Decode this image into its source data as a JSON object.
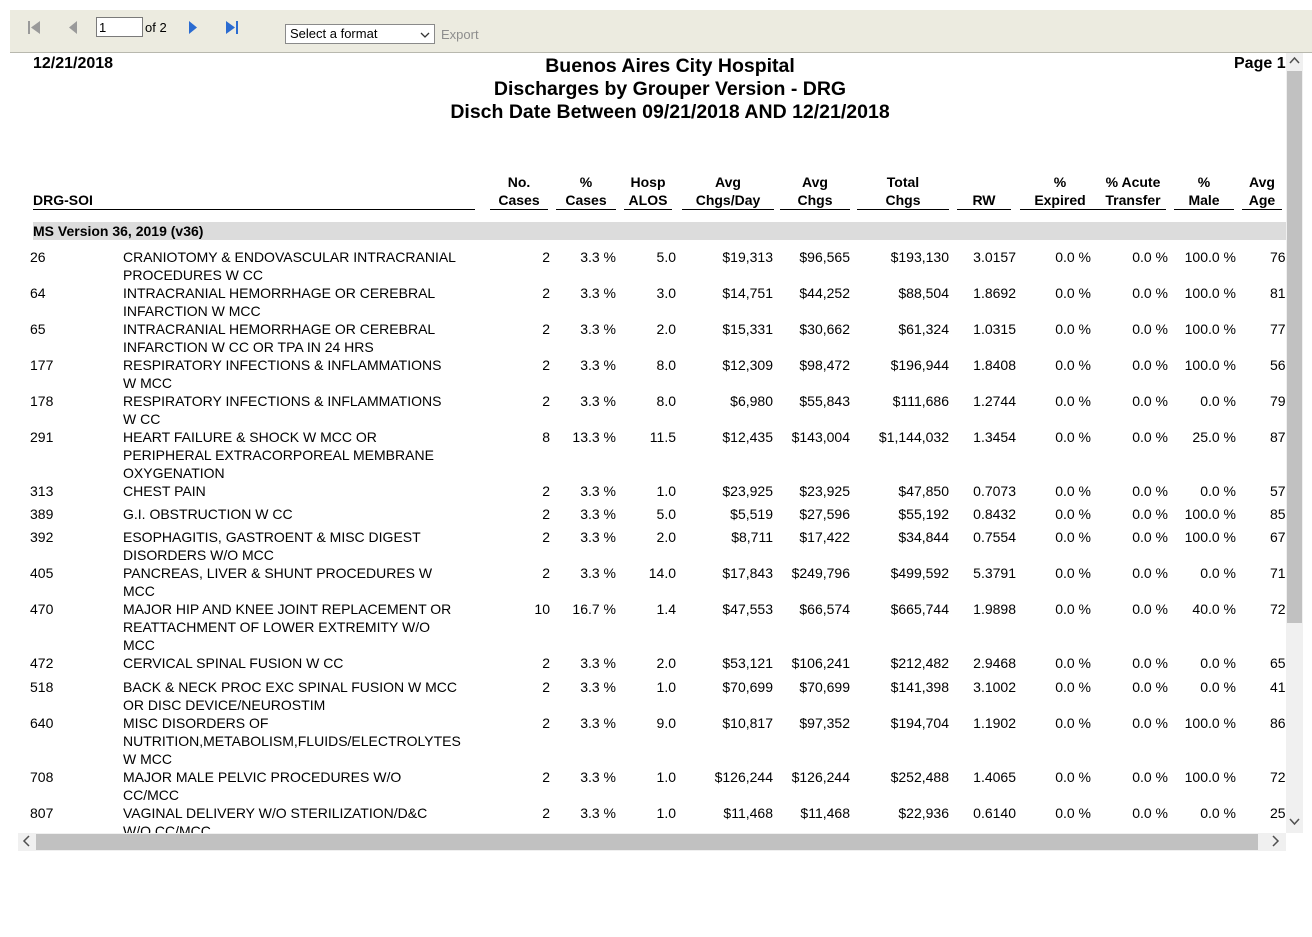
{
  "toolbar": {
    "page_value": "1",
    "of_label": "of 2",
    "format_placeholder": "Select a format",
    "export_label": "Export"
  },
  "report": {
    "date": "12/21/2018",
    "page": "Page 1",
    "title1": "Buenos Aires City Hospital",
    "title2": "Discharges by Grouper Version - DRG",
    "title3": "Disch Date Between 09/21/2018 AND 12/21/2018",
    "columns": {
      "drg": "DRG-SOI",
      "cases1": "No.",
      "cases2": "Cases",
      "pct1": "%",
      "pct2": "Cases",
      "alos1": "Hosp",
      "alos2": "ALOS",
      "cpd1": "Avg",
      "cpd2": "Chgs/Day",
      "avg1": "Avg",
      "avg2": "Chgs",
      "tot1": "Total",
      "tot2": "Chgs",
      "rw": "RW",
      "exp1": "%",
      "exp2": "Expired",
      "acu1": "% Acute",
      "acu2": "Transfer",
      "male1": "%",
      "male2": "Male",
      "age1": "Avg",
      "age2": "Age"
    },
    "group": "MS Version 36, 2019 (v36)",
    "rows": [
      {
        "drg": "26",
        "desc": "CRANIOTOMY & ENDOVASCULAR INTRACRANIAL PROCEDURES W CC",
        "cases": "2",
        "pct": "3.3 %",
        "alos": "5.0",
        "cpd": "$19,313",
        "avg": "$96,565",
        "tot": "$193,130",
        "rw": "3.0157",
        "exp": "0.0 %",
        "acu": "0.0 %",
        "male": "100.0 %",
        "age": "76"
      },
      {
        "drg": "64",
        "desc": "INTRACRANIAL HEMORRHAGE OR CEREBRAL INFARCTION W MCC",
        "cases": "2",
        "pct": "3.3 %",
        "alos": "3.0",
        "cpd": "$14,751",
        "avg": "$44,252",
        "tot": "$88,504",
        "rw": "1.8692",
        "exp": "0.0 %",
        "acu": "0.0 %",
        "male": "100.0 %",
        "age": "81"
      },
      {
        "drg": "65",
        "desc": "INTRACRANIAL HEMORRHAGE OR CEREBRAL INFARCTION W CC OR TPA IN 24 HRS",
        "cases": "2",
        "pct": "3.3 %",
        "alos": "2.0",
        "cpd": "$15,331",
        "avg": "$30,662",
        "tot": "$61,324",
        "rw": "1.0315",
        "exp": "0.0 %",
        "acu": "0.0 %",
        "male": "100.0 %",
        "age": "77"
      },
      {
        "drg": "177",
        "desc": "RESPIRATORY INFECTIONS & INFLAMMATIONS W MCC",
        "cases": "2",
        "pct": "3.3 %",
        "alos": "8.0",
        "cpd": "$12,309",
        "avg": "$98,472",
        "tot": "$196,944",
        "rw": "1.8408",
        "exp": "0.0 %",
        "acu": "0.0 %",
        "male": "100.0 %",
        "age": "56"
      },
      {
        "drg": "178",
        "desc": "RESPIRATORY INFECTIONS & INFLAMMATIONS W CC",
        "cases": "2",
        "pct": "3.3 %",
        "alos": "8.0",
        "cpd": "$6,980",
        "avg": "$55,843",
        "tot": "$111,686",
        "rw": "1.2744",
        "exp": "0.0 %",
        "acu": "0.0 %",
        "male": "0.0 %",
        "age": "79"
      },
      {
        "drg": "291",
        "desc": "HEART FAILURE & SHOCK W MCC OR PERIPHERAL EXTRACORPOREAL MEMBRANE OXYGENATION",
        "cases": "8",
        "pct": "13.3 %",
        "alos": "11.5",
        "cpd": "$12,435",
        "avg": "$143,004",
        "tot": "$1,144,032",
        "rw": "1.3454",
        "exp": "0.0 %",
        "acu": "0.0 %",
        "male": "25.0 %",
        "age": "87"
      },
      {
        "drg": "313",
        "desc": "CHEST PAIN",
        "cases": "2",
        "pct": "3.3 %",
        "alos": "1.0",
        "cpd": "$23,925",
        "avg": "$23,925",
        "tot": "$47,850",
        "rw": "0.7073",
        "exp": "0.0 %",
        "acu": "0.0 %",
        "male": "0.0 %",
        "age": "57"
      },
      {
        "drg": "389",
        "desc": "G.I. OBSTRUCTION W CC",
        "cases": "2",
        "pct": "3.3 %",
        "alos": "5.0",
        "cpd": "$5,519",
        "avg": "$27,596",
        "tot": "$55,192",
        "rw": "0.8432",
        "exp": "0.0 %",
        "acu": "0.0 %",
        "male": "100.0 %",
        "age": "85"
      },
      {
        "drg": "392",
        "desc": "ESOPHAGITIS, GASTROENT & MISC DIGEST DISORDERS W/O MCC",
        "cases": "2",
        "pct": "3.3 %",
        "alos": "2.0",
        "cpd": "$8,711",
        "avg": "$17,422",
        "tot": "$34,844",
        "rw": "0.7554",
        "exp": "0.0 %",
        "acu": "0.0 %",
        "male": "100.0 %",
        "age": "67"
      },
      {
        "drg": "405",
        "desc": "PANCREAS, LIVER & SHUNT PROCEDURES W MCC",
        "cases": "2",
        "pct": "3.3 %",
        "alos": "14.0",
        "cpd": "$17,843",
        "avg": "$249,796",
        "tot": "$499,592",
        "rw": "5.3791",
        "exp": "0.0 %",
        "acu": "0.0 %",
        "male": "0.0 %",
        "age": "71"
      },
      {
        "drg": "470",
        "desc": "MAJOR HIP AND KNEE JOINT REPLACEMENT OR REATTACHMENT OF LOWER EXTREMITY W/O MCC",
        "cases": "10",
        "pct": "16.7 %",
        "alos": "1.4",
        "cpd": "$47,553",
        "avg": "$66,574",
        "tot": "$665,744",
        "rw": "1.9898",
        "exp": "0.0 %",
        "acu": "0.0 %",
        "male": "40.0 %",
        "age": "72"
      },
      {
        "drg": "472",
        "desc": "CERVICAL SPINAL FUSION W CC",
        "cases": "2",
        "pct": "3.3 %",
        "alos": "2.0",
        "cpd": "$53,121",
        "avg": "$106,241",
        "tot": "$212,482",
        "rw": "2.9468",
        "exp": "0.0 %",
        "acu": "0.0 %",
        "male": "0.0 %",
        "age": "65"
      },
      {
        "drg": "518",
        "desc": "BACK & NECK PROC EXC SPINAL FUSION W MCC OR DISC DEVICE/NEUROSTIM",
        "cases": "2",
        "pct": "3.3 %",
        "alos": "1.0",
        "cpd": "$70,699",
        "avg": "$70,699",
        "tot": "$141,398",
        "rw": "3.1002",
        "exp": "0.0 %",
        "acu": "0.0 %",
        "male": "0.0 %",
        "age": "41"
      },
      {
        "drg": "640",
        "desc": "MISC DISORDERS OF NUTRITION,METABOLISM,FLUIDS/ELECTROLYTES W MCC",
        "cases": "2",
        "pct": "3.3 %",
        "alos": "9.0",
        "cpd": "$10,817",
        "avg": "$97,352",
        "tot": "$194,704",
        "rw": "1.1902",
        "exp": "0.0 %",
        "acu": "0.0 %",
        "male": "100.0 %",
        "age": "86"
      },
      {
        "drg": "708",
        "desc": "MAJOR MALE PELVIC PROCEDURES W/O CC/MCC",
        "cases": "2",
        "pct": "3.3 %",
        "alos": "1.0",
        "cpd": "$126,244",
        "avg": "$126,244",
        "tot": "$252,488",
        "rw": "1.4065",
        "exp": "0.0 %",
        "acu": "0.0 %",
        "male": "100.0 %",
        "age": "72"
      },
      {
        "drg": "807",
        "desc": "VAGINAL DELIVERY W/O STERILIZATION/D&C W/O CC/MCC",
        "cases": "2",
        "pct": "3.3 %",
        "alos": "1.0",
        "cpd": "$11,468",
        "avg": "$11,468",
        "tot": "$22,936",
        "rw": "0.6140",
        "exp": "0.0 %",
        "acu": "0.0 %",
        "male": "0.0 %",
        "age": "25"
      }
    ]
  },
  "icons": {
    "first": "first-page-icon",
    "prev": "previous-page-icon",
    "next": "next-page-icon",
    "last": "last-page-icon"
  }
}
